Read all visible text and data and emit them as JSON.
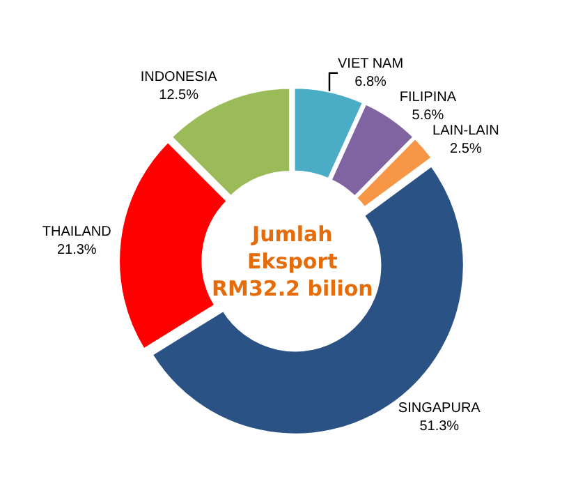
{
  "chart_data": {
    "type": "donut",
    "categories": [
      "VIET NAM",
      "FILIPINA",
      "LAIN-LAIN",
      "SINGAPURA",
      "THAILAND",
      "INDONESIA"
    ],
    "values": [
      6.8,
      5.6,
      2.5,
      51.3,
      21.3,
      12.5
    ],
    "value_labels": [
      "6.8%",
      "5.6%",
      "2.5%",
      "51.3%",
      "21.3%",
      "12.5%"
    ],
    "colors": [
      "#4bacc6",
      "#8064a2",
      "#f79646",
      "#2a5285",
      "#ff0000",
      "#9bbb59"
    ],
    "annotations": [
      "Jumlah\nEksport\nRM32.2 bilion"
    ],
    "legend": false
  }
}
